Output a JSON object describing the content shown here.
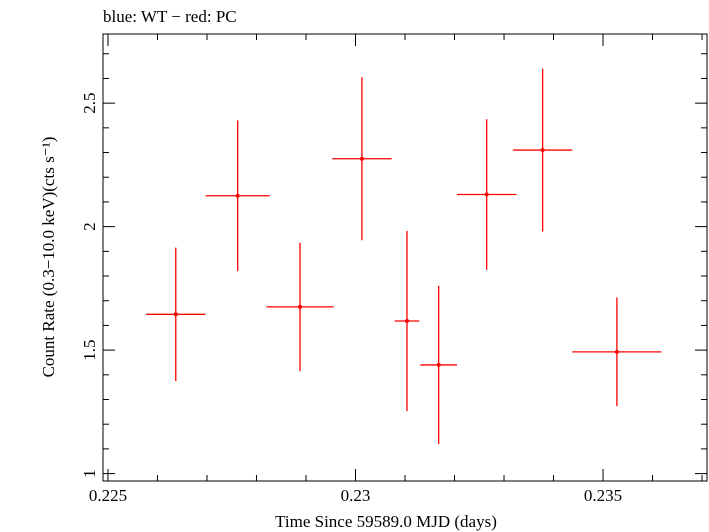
{
  "chart_data": {
    "type": "scatter",
    "title": "blue: WT − red: PC",
    "xlabel": "Time Since 59589.0 MJD (days)",
    "ylabel": "Count Rate (0.3−10.0 keV)(cts s⁻¹)",
    "xlim": [
      0.2249,
      0.2371
    ],
    "ylim": [
      0.97,
      2.78
    ],
    "x_ticks": [
      0.225,
      0.23,
      0.235
    ],
    "x_tick_labels": [
      "0.225",
      "0.23",
      "0.235"
    ],
    "y_ticks": [
      1,
      1.5,
      2,
      2.5
    ],
    "y_tick_labels": [
      "1",
      "1.5",
      "2",
      "2.5"
    ],
    "grid": false,
    "series": [
      {
        "color": "#ff0000",
        "points": [
          {
            "x": 0.22637,
            "xerr": 0.0006,
            "y": 1.645,
            "yerr": 0.27
          },
          {
            "x": 0.22762,
            "xerr": 0.00065,
            "y": 2.125,
            "yerr": 0.305
          },
          {
            "x": 0.22888,
            "xerr": 0.00068,
            "y": 1.675,
            "yerr": 0.26
          },
          {
            "x": 0.23013,
            "xerr": 0.0006,
            "y": 2.275,
            "yerr": 0.33
          },
          {
            "x": 0.23104,
            "xerr": 0.00025,
            "y": 1.618,
            "yerr": 0.365
          },
          {
            "x": 0.23168,
            "xerr": 0.00037,
            "y": 1.44,
            "yerr": 0.32
          },
          {
            "x": 0.23265,
            "xerr": 0.0006,
            "y": 2.13,
            "yerr": 0.305
          },
          {
            "x": 0.23378,
            "xerr": 0.0006,
            "y": 2.31,
            "yerr": 0.33
          },
          {
            "x": 0.23528,
            "xerr": 0.0009,
            "y": 1.493,
            "yerr": 0.22
          }
        ]
      }
    ]
  }
}
